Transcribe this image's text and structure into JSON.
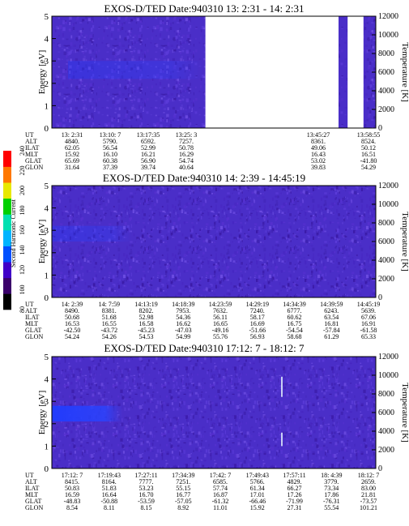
{
  "colorbar": {
    "label": "Second Harmonic Current",
    "ticks": [
      "80",
      "100",
      "120",
      "140",
      "160",
      "180",
      "200",
      "220",
      "240"
    ],
    "colors": [
      "#000000",
      "#3a006a",
      "#4000c8",
      "#0050ff",
      "#00b4ff",
      "#00e0b0",
      "#00d000",
      "#e8e800",
      "#ff7800",
      "#ff0000"
    ]
  },
  "chart_data": [
    {
      "type": "heatmap",
      "title": "EXOS-D/TED   Date:940310  13: 2:31 - 14: 2:31",
      "ylabel": "Energy [eV]",
      "ylabel_right": "Temperature [K]",
      "ylim": [
        0,
        5
      ],
      "ylim_right": [
        0,
        12000
      ],
      "yticks": [
        "0",
        "1",
        "2",
        "3",
        "4",
        "5"
      ],
      "yticks_right": [
        "0",
        "2000",
        "4000",
        "6000",
        "8000",
        "10000",
        "12000"
      ],
      "data_segments": [
        [
          0.0,
          0.474
        ],
        [
          0.885,
          0.913
        ],
        [
          0.962,
          1.0
        ]
      ],
      "enhanced_band": {
        "x": [
          0.05,
          0.5
        ],
        "energy": [
          2.2,
          3.0
        ],
        "strength": 0.35
      },
      "ephemeris": {
        "UT": [
          "13: 2:31",
          "13:10: 7",
          "13:17:35",
          "13:25: 3",
          "",
          "13:45:27",
          "13:58:55"
        ],
        "ALT": [
          "4840.",
          "5790.",
          "6592.",
          "7257.",
          "",
          "8361.",
          "8524."
        ],
        "ILAT": [
          "62.05",
          "56.54",
          "52.99",
          "50.78",
          "",
          "49.06",
          "50.12"
        ],
        "MLT": [
          "15.92",
          "16.10",
          "16.21",
          "16.29",
          "",
          "16.43",
          "16.51"
        ],
        "GLAT": [
          "65.69",
          "60.38",
          "56.90",
          "54.74",
          "",
          "53.02",
          "-41.80"
        ],
        "GLON": [
          "31.64",
          "37.39",
          "39.74",
          "40.64",
          "",
          "39.83",
          "54.29"
        ]
      }
    },
    {
      "type": "heatmap",
      "title": "EXOS-D/TED   Date:940310  14: 2:39 - 14:45:19",
      "ylabel": "Energy [eV]",
      "ylabel_right": "Temperature [K]",
      "ylim": [
        0,
        5
      ],
      "ylim_right": [
        0,
        12000
      ],
      "yticks": [
        "0",
        "1",
        "2",
        "3",
        "4",
        "5"
      ],
      "yticks_right": [
        "0",
        "2000",
        "4000",
        "6000",
        "8000",
        "10000",
        "12000"
      ],
      "data_segments": [
        [
          0.0,
          1.0
        ]
      ],
      "enhanced_band": {
        "x": [
          0.0,
          0.25
        ],
        "energy": [
          2.5,
          3.2
        ],
        "strength": 0.35
      },
      "ephemeris": {
        "UT": [
          "14: 2:39",
          "14: 7:59",
          "14:13:19",
          "14:18:39",
          "14:23:59",
          "14:29:19",
          "14:34:39",
          "14:39:59",
          "14:45:19"
        ],
        "ALT": [
          "8490.",
          "8381.",
          "8202.",
          "7953.",
          "7632.",
          "7240.",
          "6777.",
          "6243.",
          "5639."
        ],
        "ILAT": [
          "50.68",
          "51.68",
          "52.98",
          "54.36",
          "56.11",
          "58.17",
          "60.62",
          "63.54",
          "67.06"
        ],
        "MLT": [
          "16.53",
          "16.55",
          "16.58",
          "16.62",
          "16.65",
          "16.69",
          "16.75",
          "16.81",
          "16.91"
        ],
        "GLAT": [
          "-42.50",
          "-43.72",
          "-45.23",
          "-47.03",
          "-49.16",
          "-51.66",
          "-54.54",
          "-57.84",
          "-61.58"
        ],
        "GLON": [
          "54.24",
          "54.26",
          "54.53",
          "54.99",
          "55.76",
          "56.93",
          "58.68",
          "61.29",
          "65.33"
        ]
      }
    },
    {
      "type": "heatmap",
      "title": "EXOS-D/TED   Date:940310  17:12: 7 - 18:12: 7",
      "ylabel": "Energy [eV]",
      "ylabel_right": "Temperature [K]",
      "ylim": [
        0,
        5
      ],
      "ylim_right": [
        0,
        12000
      ],
      "yticks": [
        "0",
        "1",
        "2",
        "3",
        "4",
        "5"
      ],
      "yticks_right": [
        "0",
        "2000",
        "4000",
        "6000",
        "8000",
        "10000",
        "12000"
      ],
      "data_segments": [
        [
          0.0,
          1.0
        ]
      ],
      "enhanced_band": {
        "x": [
          0.0,
          0.22
        ],
        "energy": [
          2.1,
          2.8
        ],
        "strength": 0.95
      },
      "vertical_streaks": [
        {
          "x": 0.71,
          "energy": [
            3.2,
            4.1
          ]
        },
        {
          "x": 0.71,
          "energy": [
            1.0,
            1.6
          ]
        }
      ],
      "ephemeris": {
        "UT": [
          "17:12: 7",
          "17:19:43",
          "17:27:11",
          "17:34:39",
          "17:42: 7",
          "17:49:43",
          "17:57:11",
          "18: 4:39",
          "18:12: 7"
        ],
        "ALT": [
          "8415.",
          "8164.",
          "7777.",
          "7251.",
          "6585.",
          "5766.",
          "4829.",
          "3779.",
          "2659."
        ],
        "ILAT": [
          "50.83",
          "51.83",
          "53.23",
          "55.15",
          "57.74",
          "61.34",
          "66.27",
          "73.34",
          "83.00"
        ],
        "MLT": [
          "16.59",
          "16.64",
          "16.70",
          "16.77",
          "16.87",
          "17.01",
          "17.26",
          "17.86",
          "21.81"
        ],
        "GLAT": [
          "-48.83",
          "-50.88",
          "-53.59",
          "-57.05",
          "-61.32",
          "-66.46",
          "-71.99",
          "-76.31",
          "-73.57"
        ],
        "GLON": [
          "8.54",
          "8.11",
          "8.15",
          "8.92",
          "11.01",
          "15.92",
          "27.31",
          "55.54",
          "101.21"
        ]
      }
    }
  ]
}
